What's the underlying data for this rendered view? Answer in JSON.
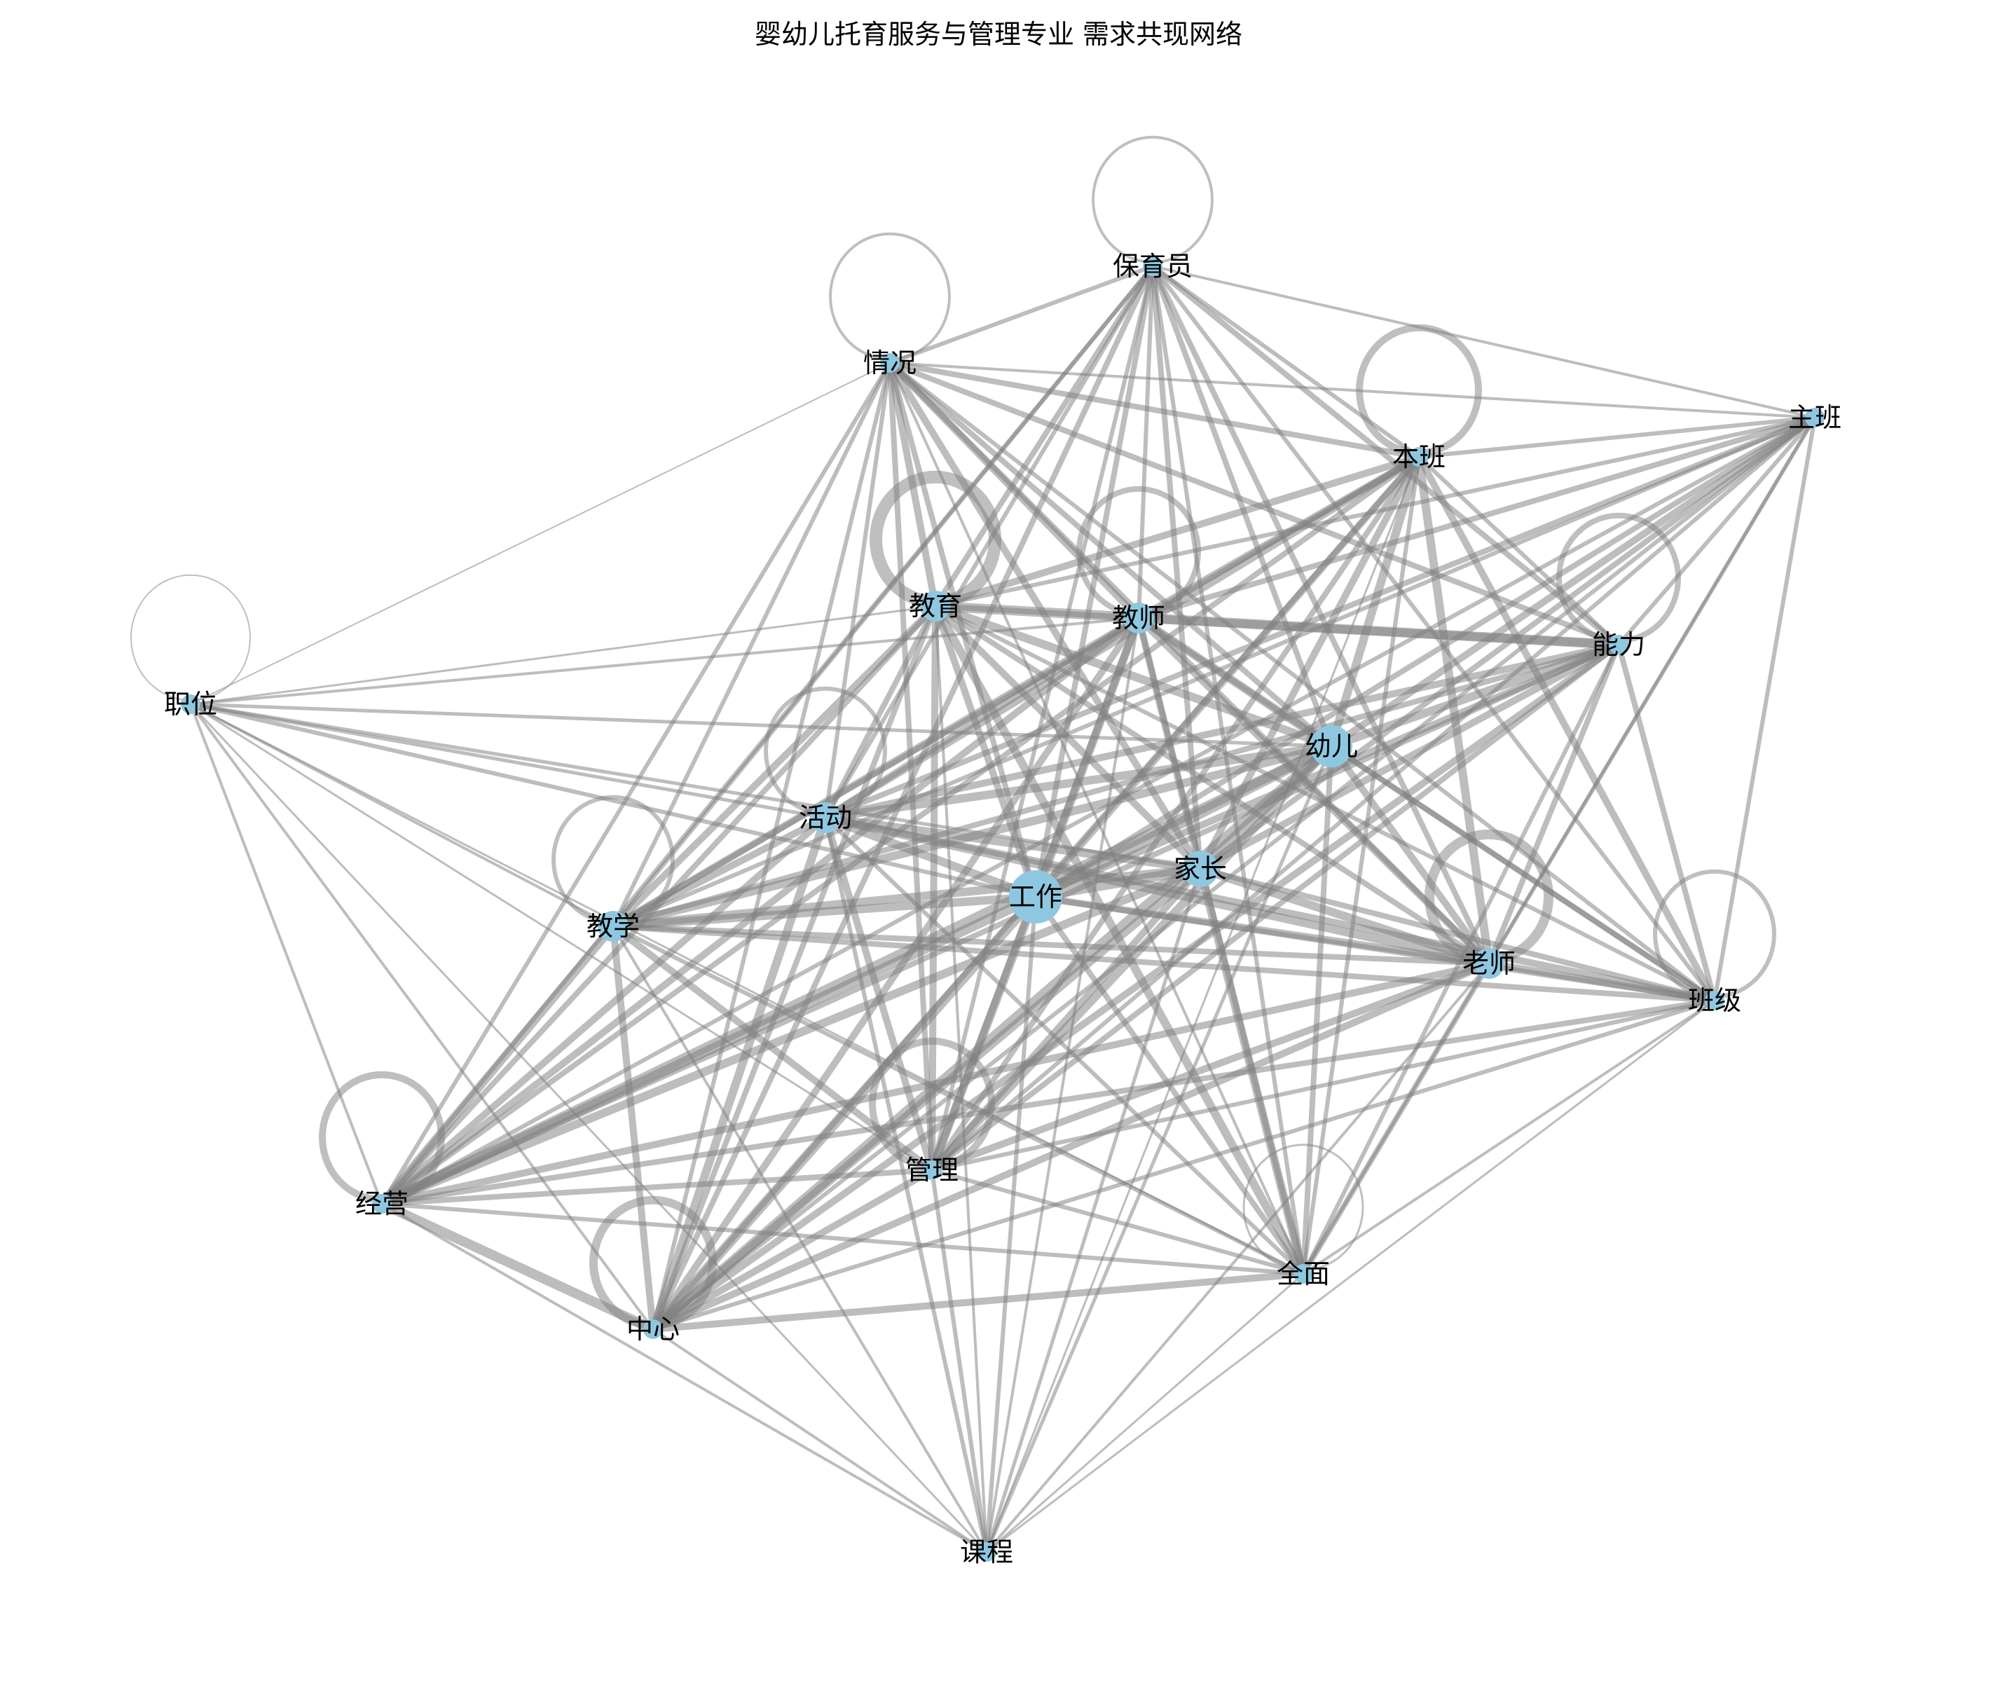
{
  "title": "婴幼儿托育服务与管理专业 需求共现网络",
  "colors": {
    "node": "#8ec8e0",
    "edge": "#808080",
    "label": "#000000",
    "background": "#ffffff"
  },
  "nodes": [
    {
      "id": "工作",
      "label": "工作",
      "size": 5
    },
    {
      "id": "幼儿",
      "label": "幼儿",
      "size": 4
    },
    {
      "id": "家长",
      "label": "家长",
      "size": 3
    },
    {
      "id": "教师",
      "label": "教师",
      "size": 2
    },
    {
      "id": "活动",
      "label": "活动",
      "size": 2
    },
    {
      "id": "教育",
      "label": "教育",
      "size": 2
    },
    {
      "id": "教学",
      "label": "教学",
      "size": 2
    },
    {
      "id": "老师",
      "label": "老师",
      "size": 2
    },
    {
      "id": "能力",
      "label": "能力",
      "size": 1
    },
    {
      "id": "本班",
      "label": "本班",
      "size": 1
    },
    {
      "id": "保育员",
      "label": "保育员",
      "size": 1
    },
    {
      "id": "情况",
      "label": "情况",
      "size": 1
    },
    {
      "id": "主班",
      "label": "主班",
      "size": 1
    },
    {
      "id": "职位",
      "label": "职位",
      "size": 1
    },
    {
      "id": "班级",
      "label": "班级",
      "size": 1
    },
    {
      "id": "经营",
      "label": "经营",
      "size": 1
    },
    {
      "id": "管理",
      "label": "管理",
      "size": 1
    },
    {
      "id": "中心",
      "label": "中心",
      "size": 1
    },
    {
      "id": "全面",
      "label": "全面",
      "size": 1
    },
    {
      "id": "课程",
      "label": "课程",
      "size": 1
    }
  ],
  "self_loops": [
    "保育员",
    "情况",
    "本班",
    "职位",
    "教育",
    "教师",
    "能力",
    "活动",
    "教学",
    "老师",
    "班级",
    "经营",
    "中心",
    "管理",
    "全面"
  ],
  "edges": [
    [
      "工作",
      "幼儿",
      16
    ],
    [
      "工作",
      "家长",
      14
    ],
    [
      "工作",
      "教师",
      12
    ],
    [
      "工作",
      "活动",
      12
    ],
    [
      "工作",
      "教育",
      10
    ],
    [
      "工作",
      "教学",
      12
    ],
    [
      "工作",
      "老师",
      10
    ],
    [
      "工作",
      "能力",
      10
    ],
    [
      "工作",
      "本班",
      10
    ],
    [
      "工作",
      "保育员",
      8
    ],
    [
      "工作",
      "情况",
      8
    ],
    [
      "工作",
      "主班",
      8
    ],
    [
      "工作",
      "职位",
      6
    ],
    [
      "工作",
      "班级",
      8
    ],
    [
      "工作",
      "经营",
      14
    ],
    [
      "工作",
      "管理",
      12
    ],
    [
      "工作",
      "中心",
      14
    ],
    [
      "工作",
      "全面",
      8
    ],
    [
      "工作",
      "课程",
      6
    ],
    [
      "幼儿",
      "家长",
      14
    ],
    [
      "幼儿",
      "教师",
      12
    ],
    [
      "幼儿",
      "活动",
      12
    ],
    [
      "幼儿",
      "教育",
      12
    ],
    [
      "幼儿",
      "教学",
      12
    ],
    [
      "幼儿",
      "老师",
      10
    ],
    [
      "幼儿",
      "能力",
      12
    ],
    [
      "幼儿",
      "本班",
      12
    ],
    [
      "幼儿",
      "保育员",
      8
    ],
    [
      "幼儿",
      "情况",
      8
    ],
    [
      "幼儿",
      "主班",
      10
    ],
    [
      "幼儿",
      "职位",
      5
    ],
    [
      "幼儿",
      "班级",
      8
    ],
    [
      "幼儿",
      "经营",
      14
    ],
    [
      "幼儿",
      "管理",
      12
    ],
    [
      "幼儿",
      "中心",
      14
    ],
    [
      "幼儿",
      "全面",
      8
    ],
    [
      "幼儿",
      "课程",
      5
    ],
    [
      "家长",
      "教师",
      10
    ],
    [
      "家长",
      "活动",
      12
    ],
    [
      "家长",
      "教育",
      10
    ],
    [
      "家长",
      "教学",
      12
    ],
    [
      "家长",
      "老师",
      12
    ],
    [
      "家长",
      "能力",
      10
    ],
    [
      "家长",
      "本班",
      10
    ],
    [
      "家长",
      "保育员",
      8
    ],
    [
      "家长",
      "情况",
      10
    ],
    [
      "家长",
      "主班",
      8
    ],
    [
      "家长",
      "职位",
      5
    ],
    [
      "家长",
      "班级",
      8
    ],
    [
      "家长",
      "经营",
      12
    ],
    [
      "家长",
      "管理",
      10
    ],
    [
      "家长",
      "中心",
      12
    ],
    [
      "家长",
      "全面",
      12
    ],
    [
      "家长",
      "课程",
      5
    ],
    [
      "教师",
      "活动",
      10
    ],
    [
      "教师",
      "教育",
      8
    ],
    [
      "教师",
      "教学",
      10
    ],
    [
      "教师",
      "老师",
      10
    ],
    [
      "教师",
      "能力",
      12
    ],
    [
      "教师",
      "本班",
      10
    ],
    [
      "教师",
      "保育员",
      6
    ],
    [
      "教师",
      "情况",
      10
    ],
    [
      "教师",
      "主班",
      8
    ],
    [
      "教师",
      "职位",
      4
    ],
    [
      "教师",
      "班级",
      8
    ],
    [
      "教师",
      "经营",
      10
    ],
    [
      "教师",
      "管理",
      10
    ],
    [
      "教师",
      "中心",
      10
    ],
    [
      "教师",
      "全面",
      8
    ],
    [
      "教师",
      "课程",
      4
    ],
    [
      "活动",
      "教育",
      8
    ],
    [
      "活动",
      "教学",
      10
    ],
    [
      "活动",
      "老师",
      12
    ],
    [
      "活动",
      "能力",
      10
    ],
    [
      "活动",
      "本班",
      10
    ],
    [
      "活动",
      "保育员",
      6
    ],
    [
      "活动",
      "情况",
      6
    ],
    [
      "活动",
      "主班",
      8
    ],
    [
      "活动",
      "职位",
      5
    ],
    [
      "活动",
      "班级",
      10
    ],
    [
      "活动",
      "经营",
      10
    ],
    [
      "活动",
      "管理",
      10
    ],
    [
      "活动",
      "中心",
      12
    ],
    [
      "活动",
      "全面",
      6
    ],
    [
      "活动",
      "课程",
      6
    ],
    [
      "教育",
      "教学",
      10
    ],
    [
      "教育",
      "老师",
      8
    ],
    [
      "教育",
      "能力",
      14
    ],
    [
      "教育",
      "本班",
      10
    ],
    [
      "教育",
      "保育员",
      8
    ],
    [
      "教育",
      "情况",
      10
    ],
    [
      "教育",
      "主班",
      6
    ],
    [
      "教育",
      "职位",
      3
    ],
    [
      "教育",
      "班级",
      6
    ],
    [
      "教育",
      "经营",
      8
    ],
    [
      "教育",
      "管理",
      10
    ],
    [
      "教育",
      "中心",
      8
    ],
    [
      "教育",
      "全面",
      12
    ],
    [
      "教育",
      "课程",
      4
    ],
    [
      "教学",
      "老师",
      8
    ],
    [
      "教学",
      "能力",
      8
    ],
    [
      "教学",
      "本班",
      8
    ],
    [
      "教学",
      "保育员",
      6
    ],
    [
      "教学",
      "情况",
      6
    ],
    [
      "教学",
      "主班",
      6
    ],
    [
      "教学",
      "职位",
      4
    ],
    [
      "教学",
      "班级",
      8
    ],
    [
      "教学",
      "经营",
      12
    ],
    [
      "教学",
      "管理",
      10
    ],
    [
      "教学",
      "中心",
      10
    ],
    [
      "教学",
      "全面",
      6
    ],
    [
      "教学",
      "课程",
      4
    ],
    [
      "老师",
      "能力",
      8
    ],
    [
      "老师",
      "本班",
      12
    ],
    [
      "老师",
      "保育员",
      8
    ],
    [
      "老师",
      "情况",
      8
    ],
    [
      "老师",
      "主班",
      6
    ],
    [
      "老师",
      "班级",
      10
    ],
    [
      "老师",
      "经营",
      10
    ],
    [
      "老师",
      "管理",
      10
    ],
    [
      "老师",
      "中心",
      10
    ],
    [
      "老师",
      "全面",
      8
    ],
    [
      "老师",
      "课程",
      4
    ],
    [
      "能力",
      "本班",
      6
    ],
    [
      "能力",
      "保育员",
      8
    ],
    [
      "能力",
      "情况",
      8
    ],
    [
      "能力",
      "主班",
      6
    ],
    [
      "能力",
      "班级",
      8
    ],
    [
      "能力",
      "经营",
      8
    ],
    [
      "能力",
      "管理",
      8
    ],
    [
      "能力",
      "中心",
      10
    ],
    [
      "能力",
      "全面",
      6
    ],
    [
      "本班",
      "保育员",
      6
    ],
    [
      "本班",
      "情况",
      8
    ],
    [
      "本班",
      "主班",
      6
    ],
    [
      "本班",
      "班级",
      10
    ],
    [
      "本班",
      "经营",
      8
    ],
    [
      "本班",
      "管理",
      8
    ],
    [
      "本班",
      "中心",
      8
    ],
    [
      "本班",
      "全面",
      6
    ],
    [
      "本班",
      "课程",
      3
    ],
    [
      "保育员",
      "情况",
      6
    ],
    [
      "保育员",
      "主班",
      4
    ],
    [
      "保育员",
      "班级",
      6
    ],
    [
      "保育员",
      "经营",
      6
    ],
    [
      "保育员",
      "管理",
      6
    ],
    [
      "保育员",
      "中心",
      8
    ],
    [
      "保育员",
      "全面",
      6
    ],
    [
      "情况",
      "主班",
      4
    ],
    [
      "情况",
      "职位",
      2
    ],
    [
      "情况",
      "班级",
      6
    ],
    [
      "情况",
      "经营",
      6
    ],
    [
      "情况",
      "管理",
      8
    ],
    [
      "情况",
      "中心",
      6
    ],
    [
      "情况",
      "全面",
      4
    ],
    [
      "主班",
      "班级",
      6
    ],
    [
      "主班",
      "经营",
      6
    ],
    [
      "主班",
      "管理",
      6
    ],
    [
      "主班",
      "中心",
      6
    ],
    [
      "主班",
      "全面",
      4
    ],
    [
      "职位",
      "经营",
      4
    ],
    [
      "职位",
      "中心",
      4
    ],
    [
      "职位",
      "课程",
      3
    ],
    [
      "职位",
      "管理",
      3
    ],
    [
      "职位",
      "全面",
      3
    ],
    [
      "班级",
      "经营",
      8
    ],
    [
      "班级",
      "管理",
      6
    ],
    [
      "班级",
      "中心",
      6
    ],
    [
      "班级",
      "全面",
      4
    ],
    [
      "班级",
      "课程",
      3
    ],
    [
      "经营",
      "管理",
      8
    ],
    [
      "经营",
      "中心",
      14
    ],
    [
      "经营",
      "全面",
      6
    ],
    [
      "经营",
      "课程",
      4
    ],
    [
      "管理",
      "中心",
      10
    ],
    [
      "管理",
      "全面",
      6
    ],
    [
      "管理",
      "课程",
      6
    ],
    [
      "中心",
      "全面",
      10
    ],
    [
      "中心",
      "课程",
      4
    ],
    [
      "全面",
      "课程",
      3
    ]
  ]
}
